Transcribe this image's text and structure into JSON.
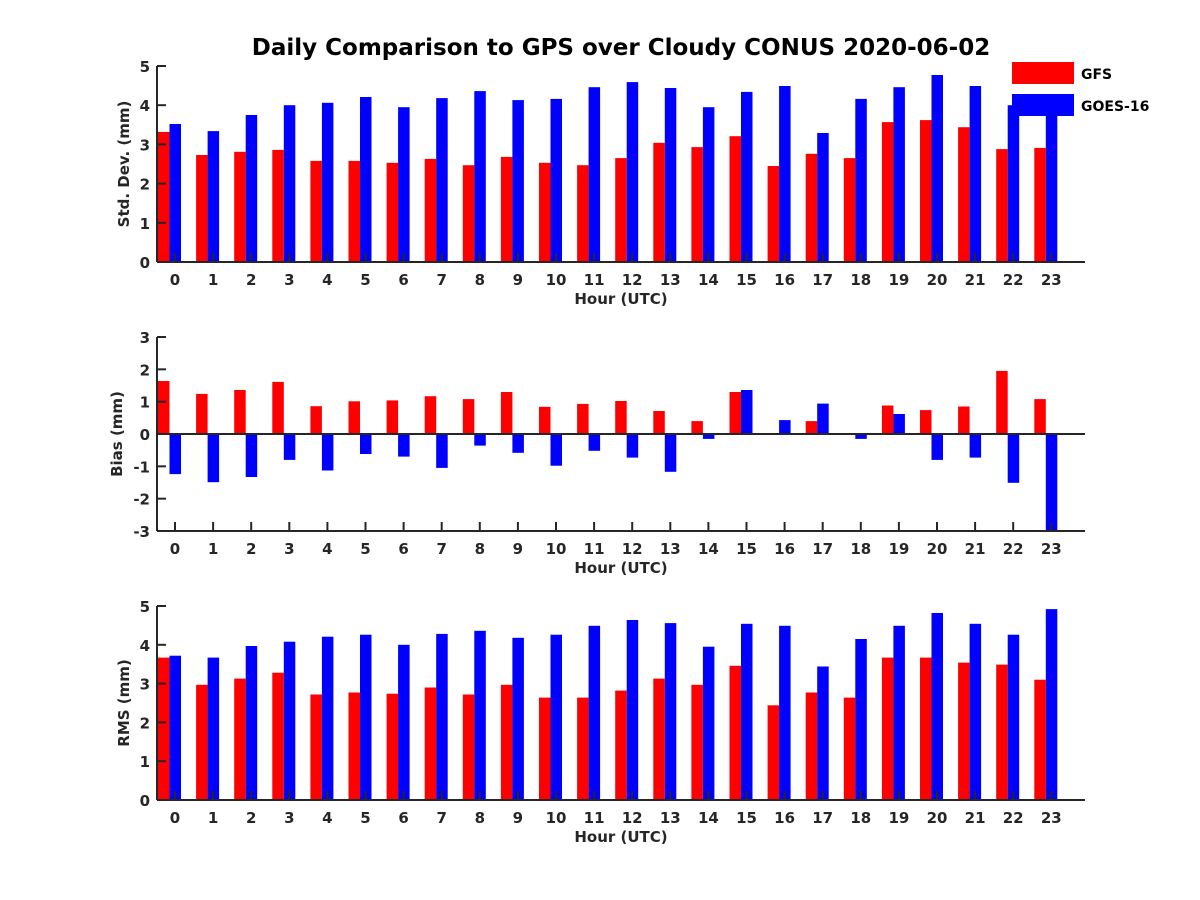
{
  "chart_data": {
    "type": "bar",
    "title": "Daily Comparison to GPS over Cloudy CONUS 2020-06-02",
    "legend": {
      "placement": "top-right",
      "entries": [
        {
          "name": "GFS",
          "color": "#ff0000"
        },
        {
          "name": "GOES-16",
          "color": "#0000ff"
        }
      ]
    },
    "categories": [
      "0",
      "1",
      "2",
      "3",
      "4",
      "5",
      "6",
      "7",
      "8",
      "9",
      "10",
      "11",
      "12",
      "13",
      "14",
      "15",
      "16",
      "17",
      "18",
      "19",
      "20",
      "21",
      "22",
      "23"
    ],
    "panels": [
      {
        "id": "stddev",
        "xlabel": "Hour (UTC)",
        "ylabel": "Std. Dev. (mm)",
        "ylim": [
          0,
          5
        ],
        "yticks": [
          0,
          1,
          2,
          3,
          4,
          5
        ],
        "grid": false,
        "series": [
          {
            "name": "GFS",
            "values": [
              3.32,
              2.73,
              2.81,
              2.86,
              2.58,
              2.58,
              2.53,
              2.63,
              2.47,
              2.68,
              2.53,
              2.47,
              2.65,
              3.04,
              2.93,
              3.21,
              2.45,
              2.76,
              2.65,
              3.57,
              3.62,
              3.44,
              2.88,
              2.91
            ]
          },
          {
            "name": "GOES-16",
            "values": [
              3.52,
              3.34,
              3.75,
              4.0,
              4.06,
              4.21,
              3.95,
              4.18,
              4.36,
              4.13,
              4.16,
              4.46,
              4.59,
              4.44,
              3.95,
              4.34,
              4.49,
              3.29,
              4.16,
              4.46,
              4.77,
              4.49,
              4.0,
              3.92
            ]
          }
        ]
      },
      {
        "id": "bias",
        "xlabel": "Hour (UTC)",
        "ylabel": "Bias (mm)",
        "ylim": [
          -3,
          3
        ],
        "yticks": [
          -3,
          -2,
          -1,
          0,
          1,
          2,
          3
        ],
        "grid": false,
        "zero_line": true,
        "series": [
          {
            "name": "GFS",
            "values": [
              1.64,
              1.24,
              1.36,
              1.61,
              0.86,
              1.01,
              1.04,
              1.17,
              1.08,
              1.3,
              0.84,
              0.93,
              1.02,
              0.71,
              0.4,
              1.3,
              0.03,
              0.4,
              0.02,
              0.88,
              0.74,
              0.85,
              1.95,
              1.08
            ]
          },
          {
            "name": "GOES-16",
            "values": [
              -1.24,
              -1.49,
              -1.33,
              -0.8,
              -1.13,
              -0.62,
              -0.7,
              -1.05,
              -0.36,
              -0.58,
              -0.98,
              -0.52,
              -0.73,
              -1.17,
              -0.15,
              1.36,
              0.43,
              0.94,
              -0.15,
              0.62,
              -0.8,
              -0.73,
              -1.51,
              -2.97
            ]
          }
        ]
      },
      {
        "id": "rms",
        "xlabel": "Hour (UTC)",
        "ylabel": "RMS (mm)",
        "ylim": [
          0,
          5
        ],
        "yticks": [
          0,
          1,
          2,
          3,
          4,
          5
        ],
        "grid": false,
        "series": [
          {
            "name": "GFS",
            "values": [
              3.67,
              2.97,
              3.13,
              3.28,
              2.72,
              2.77,
              2.74,
              2.9,
              2.72,
              2.97,
              2.64,
              2.64,
              2.82,
              3.13,
              2.97,
              3.46,
              2.44,
              2.77,
              2.64,
              3.67,
              3.67,
              3.54,
              3.49,
              3.1
            ]
          },
          {
            "name": "GOES-16",
            "values": [
              3.72,
              3.67,
              3.97,
              4.08,
              4.21,
              4.26,
              4.0,
              4.28,
              4.36,
              4.18,
              4.26,
              4.49,
              4.64,
              4.56,
              3.95,
              4.54,
              4.49,
              3.44,
              4.15,
              4.49,
              4.82,
              4.54,
              4.26,
              4.92
            ]
          }
        ]
      }
    ]
  }
}
